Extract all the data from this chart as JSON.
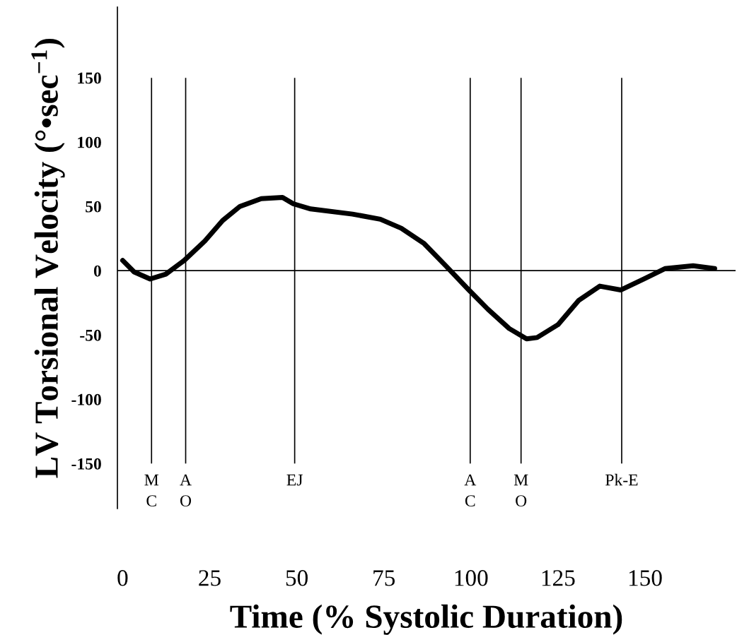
{
  "chart_data": {
    "type": "line",
    "xlabel": "Time (% Systolic Duration)",
    "ylabel": "LV Torsional Velocity (°•sec$^{−1}$)",
    "x": [
      0,
      3.3,
      7.9,
      12.4,
      17.7,
      23.6,
      28.7,
      33.7,
      39.8,
      45.9,
      49,
      54,
      66,
      74,
      80,
      86.6,
      92.7,
      99.4,
      104.9,
      111,
      116,
      119,
      125,
      131,
      137,
      143,
      149.6,
      155.7,
      163.8,
      170
    ],
    "series": [
      {
        "color": "#000000",
        "values": [
          8,
          -1,
          -6.5,
          -2.7,
          8,
          23,
          39,
          50,
          56,
          57,
          52,
          48,
          44,
          40,
          33,
          21,
          4,
          -15,
          -30,
          -45,
          -53,
          -52,
          -42,
          -23,
          -12,
          -15,
          -6.5,
          1.6,
          3.8,
          1.6
        ]
      }
    ],
    "xlim": [
      -1.5,
      176
    ],
    "ylim": [
      -185,
      205
    ],
    "xticks": [
      0,
      25,
      50,
      75,
      100,
      125,
      150
    ],
    "yticks": [
      -150,
      -100,
      -50,
      0,
      50,
      100,
      150
    ],
    "ref_lines": [
      {
        "axis": "y",
        "value": 0,
        "label": null
      },
      {
        "axis": "x",
        "value": 8.3,
        "label": "M\nC"
      },
      {
        "axis": "x",
        "value": 18.1,
        "label": "A\nO"
      },
      {
        "axis": "x",
        "value": 49.4,
        "label": "EJ"
      },
      {
        "axis": "x",
        "value": 99.8,
        "label": "A\nC"
      },
      {
        "axis": "x",
        "value": 114.4,
        "label": "M\nO"
      },
      {
        "axis": "x",
        "value": 143.3,
        "label": "Pk-E"
      }
    ],
    "grid": false,
    "legend": false,
    "marker": "none",
    "line_style": "solid"
  }
}
